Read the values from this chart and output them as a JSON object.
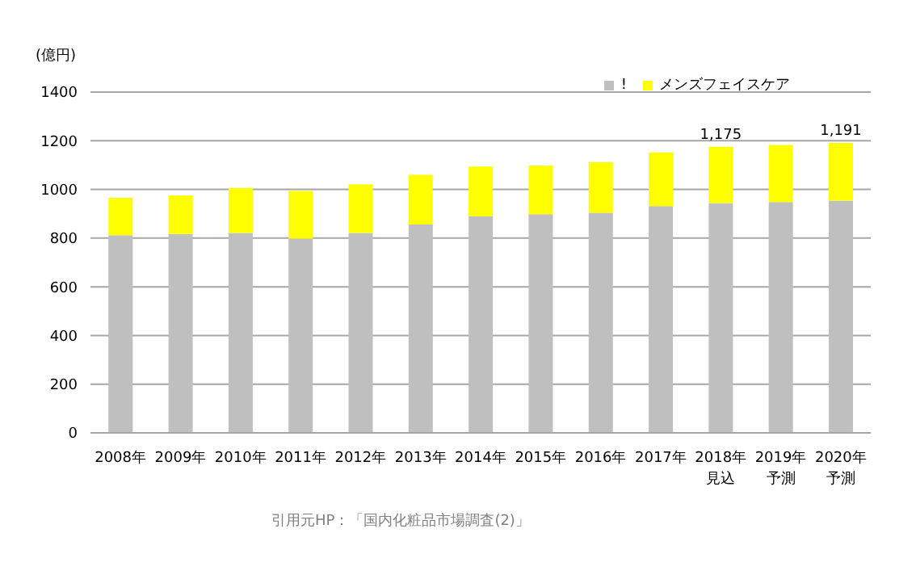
{
  "chart_data": {
    "type": "bar",
    "stacked": true,
    "ylabel": "(億円)",
    "categories": [
      "2008年",
      "2009年",
      "2010年",
      "2011年",
      "2012年",
      "2013年",
      "2014年",
      "2015年",
      "2016年",
      "2017年",
      "2018年見込",
      "2019年予測",
      "2020年予測"
    ],
    "series": [
      {
        "name": "!",
        "color": "#bfbfbf",
        "values": [
          812,
          817,
          821,
          798,
          821,
          856,
          890,
          898,
          904,
          931,
          944,
          948,
          954
        ]
      },
      {
        "name": "メンズフェイスケア",
        "color": "#ffff00",
        "values": [
          153,
          158,
          185,
          196,
          200,
          204,
          204,
          200,
          208,
          221,
          231,
          235,
          237
        ]
      }
    ],
    "totals": [
      null,
      null,
      null,
      null,
      null,
      null,
      null,
      null,
      null,
      null,
      "1,175",
      null,
      "1,191"
    ],
    "ylim": [
      0,
      1400
    ],
    "yticks": [
      0,
      200,
      400,
      600,
      800,
      1000,
      1200,
      1400
    ],
    "grid": "y",
    "legend": "top right",
    "annotations": [
      "引用元HP：「国内化粧品市場調査(2)」"
    ]
  }
}
